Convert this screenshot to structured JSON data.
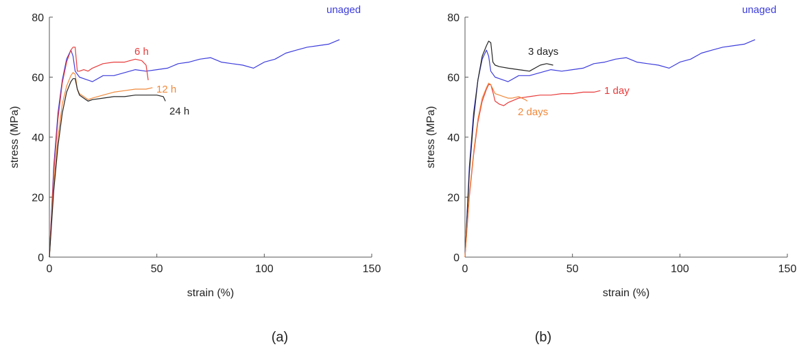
{
  "chart_data": [
    {
      "type": "line",
      "panel_label": "(a)",
      "xlabel": "strain (%)",
      "ylabel": "stress (MPa)",
      "xlim": [
        0,
        150
      ],
      "ylim": [
        0,
        80
      ],
      "xticks": [
        "0",
        "50",
        "100",
        "150"
      ],
      "yticks": [
        "0",
        "20",
        "40",
        "60",
        "80"
      ],
      "grid": false,
      "series": [
        {
          "name": "unaged",
          "color": "#3b3bdc",
          "x": [
            0,
            2,
            4,
            6,
            8,
            10,
            11,
            12,
            14,
            16,
            20,
            25,
            30,
            35,
            40,
            45,
            50,
            55,
            60,
            65,
            70,
            75,
            80,
            85,
            90,
            95,
            100,
            105,
            110,
            115,
            120,
            125,
            130,
            135
          ],
          "y": [
            0,
            30,
            48,
            59,
            66,
            69,
            67,
            62,
            60,
            59.5,
            58.5,
            60.5,
            60.5,
            61.5,
            62.5,
            62,
            62.5,
            63,
            64.5,
            65,
            66,
            66.5,
            65,
            64.5,
            64,
            63,
            65,
            66,
            68,
            69,
            70,
            70.5,
            71,
            72.5
          ]
        },
        {
          "name": "6 h",
          "color": "#e83a3a",
          "x": [
            0,
            2,
            4,
            6,
            8,
            10,
            11,
            12,
            13,
            14,
            16,
            18,
            20,
            25,
            30,
            35,
            40,
            43,
            45,
            46
          ],
          "y": [
            0,
            28,
            46,
            58,
            65,
            69,
            70,
            70,
            62,
            62,
            62.5,
            62,
            63,
            64.5,
            65,
            65,
            66,
            65.5,
            64,
            59
          ]
        },
        {
          "name": "12 h",
          "color": "#f0883a",
          "x": [
            0,
            2,
            4,
            6,
            8,
            10,
            11,
            12,
            13,
            14,
            16,
            18,
            20,
            25,
            30,
            35,
            40,
            45,
            48
          ],
          "y": [
            0,
            24,
            40,
            51,
            57,
            60.5,
            61.5,
            61,
            56,
            54.5,
            53.5,
            52.5,
            53,
            54,
            55,
            55.5,
            56,
            56,
            56.5
          ]
        },
        {
          "name": "24 h",
          "color": "#222222",
          "x": [
            0,
            2,
            4,
            6,
            8,
            10,
            11,
            12,
            13,
            14,
            16,
            18,
            20,
            25,
            30,
            35,
            40,
            45,
            50,
            53,
            54
          ],
          "y": [
            0,
            22,
            37,
            48,
            55,
            58.5,
            59.5,
            59.5,
            56,
            54,
            53,
            52,
            52.5,
            53,
            53.5,
            53.5,
            54,
            54,
            54,
            53.5,
            52
          ]
        }
      ]
    },
    {
      "type": "line",
      "panel_label": "(b)",
      "xlabel": "strain (%)",
      "ylabel": "stress (MPa)",
      "xlim": [
        0,
        150
      ],
      "ylim": [
        0,
        80
      ],
      "xticks": [
        "0",
        "50",
        "100",
        "150"
      ],
      "yticks": [
        "0",
        "20",
        "40",
        "60",
        "80"
      ],
      "grid": false,
      "series": [
        {
          "name": "unaged",
          "color": "#3b3bdc",
          "x": [
            0,
            2,
            4,
            6,
            8,
            10,
            11,
            12,
            14,
            16,
            20,
            25,
            30,
            35,
            40,
            45,
            50,
            55,
            60,
            65,
            70,
            75,
            80,
            85,
            90,
            95,
            100,
            105,
            110,
            115,
            120,
            125,
            130,
            135
          ],
          "y": [
            0,
            30,
            48,
            59,
            66,
            69,
            67,
            62,
            60,
            59.5,
            58.5,
            60.5,
            60.5,
            61.5,
            62.5,
            62,
            62.5,
            63,
            64.5,
            65,
            66,
            66.5,
            65,
            64.5,
            64,
            63,
            65,
            66,
            68,
            69,
            70,
            70.5,
            71,
            72.5
          ]
        },
        {
          "name": "3 days",
          "color": "#222222",
          "x": [
            0,
            2,
            4,
            6,
            8,
            10,
            11,
            12,
            13,
            14,
            16,
            20,
            25,
            30,
            35,
            38,
            41
          ],
          "y": [
            0,
            28,
            46,
            59,
            67,
            70.5,
            72,
            71.5,
            65,
            64,
            63.5,
            63,
            62.5,
            62,
            64,
            64.5,
            64
          ]
        },
        {
          "name": "1 day",
          "color": "#e83a3a",
          "x": [
            0,
            2,
            4,
            6,
            8,
            10,
            11,
            12,
            13,
            14,
            16,
            18,
            20,
            25,
            30,
            35,
            40,
            45,
            50,
            55,
            60,
            63
          ],
          "y": [
            0,
            20,
            34,
            45,
            52,
            56,
            57.5,
            57.5,
            55,
            52,
            51,
            50.5,
            51.5,
            53,
            53.5,
            54,
            54,
            54.5,
            54.5,
            55,
            55,
            55.5
          ]
        },
        {
          "name": "2 days",
          "color": "#f0883a",
          "x": [
            0,
            2,
            4,
            6,
            8,
            10,
            11,
            12,
            13,
            14,
            16,
            18,
            20,
            22,
            25,
            28,
            29
          ],
          "y": [
            0,
            21,
            35,
            46,
            53,
            56.5,
            58,
            57.5,
            56,
            54.5,
            54,
            53.5,
            53,
            53,
            53.5,
            52.5,
            52
          ]
        }
      ]
    }
  ],
  "labels": {
    "a_unaged": "unaged",
    "a_6h": "6 h",
    "a_12h": "12 h",
    "a_24h": "24 h",
    "b_unaged": "unaged",
    "b_3days": "3 days",
    "b_1day": "1 day",
    "b_2days": "2 days"
  },
  "colors": {
    "blue": "#3b3bdc",
    "red": "#e83a3a",
    "orange": "#f0883a",
    "black": "#222222"
  }
}
